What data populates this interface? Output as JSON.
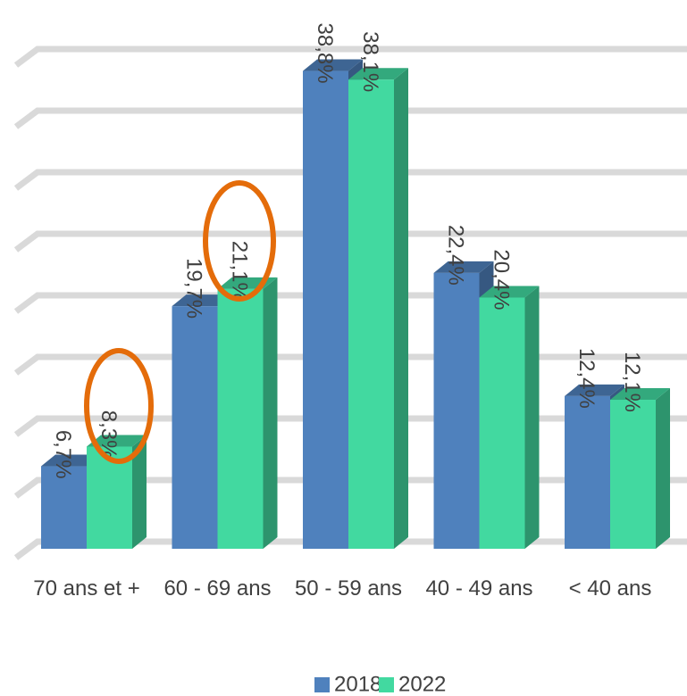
{
  "chart_data": {
    "type": "bar3d",
    "categories": [
      "70 ans et +",
      "60 - 69 ans",
      "50 - 59 ans",
      "40 - 49 ans",
      "< 40 ans"
    ],
    "series": [
      {
        "name": "2018",
        "color": "#4f81bd",
        "values": [
          6.7,
          19.7,
          38.8,
          22.4,
          12.4
        ],
        "value_labels": [
          "6,7%",
          "19,7%",
          "38,8%",
          "22,4%",
          "12,4%"
        ]
      },
      {
        "name": "2022",
        "color": "#42d9a0",
        "values": [
          8.3,
          21.1,
          38.1,
          20.4,
          12.1
        ],
        "value_labels": [
          "8,3%",
          "21,1%",
          "38,1%",
          "20,4%",
          "12,1%"
        ]
      }
    ],
    "ylim": [
      0,
      40
    ],
    "yticks": [
      0,
      5,
      10,
      15,
      20,
      25,
      30,
      35,
      40
    ],
    "grid": true,
    "legend": "bottom"
  }
}
